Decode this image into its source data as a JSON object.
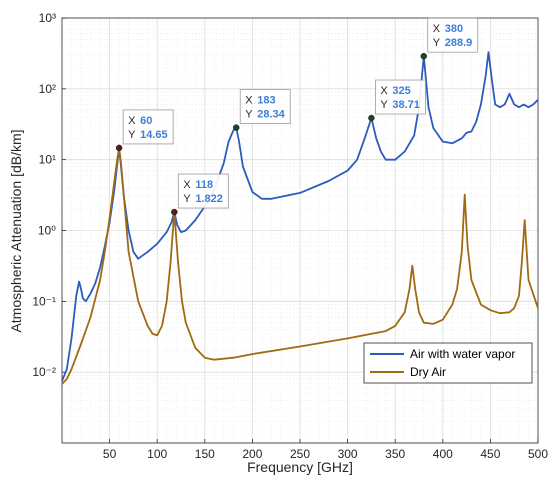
{
  "chart_data": {
    "type": "line",
    "xlabel": "Frequency [GHz]",
    "ylabel": "Atmospheric Attenuation [dB/km]",
    "xlim": [
      0,
      500
    ],
    "ylim": [
      0.001,
      1000
    ],
    "yscale": "log",
    "xticks": [
      "50",
      "100",
      "150",
      "200",
      "250",
      "300",
      "350",
      "400",
      "450",
      "500"
    ],
    "yticks": [
      "10⁻²",
      "10⁻¹",
      "10⁰",
      "10¹",
      "10²",
      "10³"
    ],
    "grid": true,
    "minor_grid": true,
    "legend_position": "bottom-right",
    "series": [
      {
        "name": "Air with water vapor",
        "color": "#2c5bbd",
        "x": [
          0,
          5,
          10,
          15,
          18,
          20,
          22,
          25,
          30,
          35,
          40,
          45,
          50,
          55,
          58,
          60,
          62,
          65,
          70,
          75,
          80,
          90,
          100,
          110,
          115,
          118,
          121,
          125,
          130,
          140,
          150,
          160,
          170,
          175,
          180,
          183,
          186,
          190,
          200,
          210,
          220,
          250,
          280,
          300,
          310,
          318,
          325,
          330,
          335,
          340,
          350,
          360,
          370,
          375,
          380,
          385,
          390,
          400,
          410,
          420,
          425,
          430,
          435,
          440,
          445,
          448,
          452,
          455,
          460,
          465,
          470,
          475,
          480,
          485,
          490,
          495,
          500
        ],
        "y": [
          0.0075,
          0.011,
          0.03,
          0.12,
          0.19,
          0.15,
          0.11,
          0.1,
          0.13,
          0.18,
          0.3,
          0.6,
          1.3,
          3.8,
          8.5,
          14.65,
          8.0,
          3.0,
          1.0,
          0.5,
          0.4,
          0.5,
          0.65,
          0.95,
          1.3,
          1.822,
          1.2,
          0.95,
          1.0,
          1.4,
          2.2,
          3.8,
          9.0,
          18.0,
          26.0,
          28.34,
          18.0,
          8.0,
          3.5,
          2.8,
          2.8,
          3.4,
          5.0,
          7.0,
          10.0,
          20.0,
          38.71,
          20.0,
          13.0,
          10.0,
          10.0,
          13.0,
          22.0,
          55.0,
          288.9,
          55.0,
          28.0,
          18.0,
          17.0,
          20.0,
          24.0,
          25.0,
          34.0,
          60.0,
          150.0,
          330.0,
          120.0,
          60.0,
          55.0,
          60.0,
          85.0,
          60.0,
          55.0,
          60.0,
          55.0,
          60.0,
          70.0
        ]
      },
      {
        "name": "Dry Air",
        "color": "#a06a12",
        "x": [
          0,
          5,
          10,
          20,
          30,
          40,
          45,
          50,
          55,
          58,
          60,
          62,
          65,
          70,
          80,
          90,
          95,
          100,
          105,
          110,
          114,
          118,
          122,
          126,
          130,
          140,
          150,
          160,
          180,
          200,
          250,
          300,
          340,
          350,
          360,
          365,
          368,
          371,
          375,
          380,
          390,
          400,
          410,
          415,
          420,
          423,
          426,
          430,
          440,
          450,
          460,
          470,
          475,
          480,
          483,
          486,
          490,
          500
        ],
        "y": [
          0.0068,
          0.008,
          0.011,
          0.025,
          0.06,
          0.2,
          0.5,
          1.5,
          5.0,
          10.0,
          14.65,
          9.0,
          3.0,
          0.5,
          0.1,
          0.045,
          0.035,
          0.033,
          0.045,
          0.1,
          0.35,
          1.822,
          0.35,
          0.1,
          0.05,
          0.022,
          0.016,
          0.015,
          0.016,
          0.018,
          0.023,
          0.03,
          0.038,
          0.045,
          0.07,
          0.15,
          0.32,
          0.15,
          0.07,
          0.05,
          0.048,
          0.055,
          0.09,
          0.15,
          0.5,
          3.2,
          0.6,
          0.2,
          0.09,
          0.075,
          0.068,
          0.07,
          0.08,
          0.12,
          0.35,
          1.4,
          0.2,
          0.08
        ]
      }
    ],
    "datatips": [
      {
        "series": 1,
        "x": 60,
        "y": 14.65,
        "x_text": "60",
        "y_text": "14.65"
      },
      {
        "series": 1,
        "x": 118,
        "y": 1.822,
        "x_text": "118",
        "y_text": "1.822"
      },
      {
        "series": 0,
        "x": 183,
        "y": 28.34,
        "x_text": "183",
        "y_text": "28.34"
      },
      {
        "series": 0,
        "x": 325,
        "y": 38.71,
        "x_text": "325",
        "y_text": "38.71"
      },
      {
        "series": 0,
        "x": 380,
        "y": 288.9,
        "x_text": "380",
        "y_text": "288.9"
      }
    ],
    "datatip_labels": {
      "x": "X",
      "y": "Y"
    }
  }
}
